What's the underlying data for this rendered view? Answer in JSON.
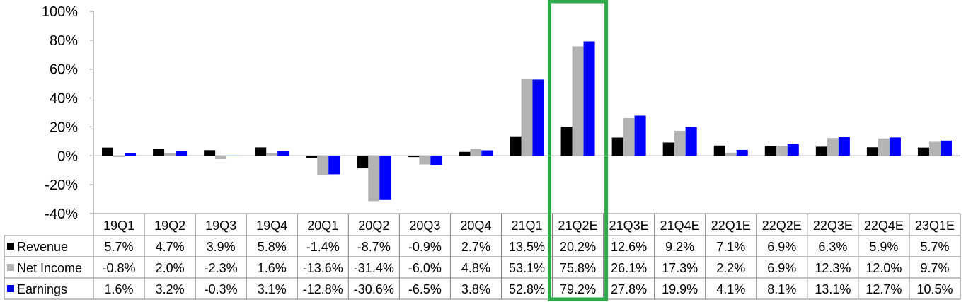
{
  "chart_data": {
    "type": "bar",
    "categories": [
      "19Q1",
      "19Q2",
      "19Q3",
      "19Q4",
      "20Q1",
      "20Q2",
      "20Q3",
      "20Q4",
      "21Q1",
      "21Q2E",
      "21Q3E",
      "21Q4E",
      "22Q1E",
      "22Q2E",
      "22Q3E",
      "22Q4E",
      "23Q1E"
    ],
    "series": [
      {
        "name": "Revenue",
        "color": "#000000",
        "values": [
          5.7,
          4.7,
          3.9,
          5.8,
          -1.4,
          -8.7,
          -0.9,
          2.7,
          13.5,
          20.2,
          12.6,
          9.2,
          7.1,
          6.9,
          6.3,
          5.9,
          5.7
        ],
        "labels": [
          "5.7%",
          "4.7%",
          "3.9%",
          "5.8%",
          "-1.4%",
          "-8.7%",
          "-0.9%",
          "2.7%",
          "13.5%",
          "20.2%",
          "12.6%",
          "9.2%",
          "7.1%",
          "6.9%",
          "6.3%",
          "5.9%",
          "5.7%"
        ]
      },
      {
        "name": "Net Income",
        "color": "#b3b3b3",
        "values": [
          -0.8,
          2.0,
          -2.3,
          1.6,
          -13.6,
          -31.4,
          -6.0,
          4.8,
          53.1,
          75.8,
          26.1,
          17.3,
          2.2,
          6.9,
          12.3,
          12.0,
          9.7
        ],
        "labels": [
          "-0.8%",
          "2.0%",
          "-2.3%",
          "1.6%",
          "-13.6%",
          "-31.4%",
          "-6.0%",
          "4.8%",
          "53.1%",
          "75.8%",
          "26.1%",
          "17.3%",
          "2.2%",
          "6.9%",
          "12.3%",
          "12.0%",
          "9.7%"
        ]
      },
      {
        "name": "Earnings",
        "color": "#0000ff",
        "values": [
          1.6,
          3.2,
          -0.3,
          3.1,
          -12.8,
          -30.6,
          -6.5,
          3.8,
          52.8,
          79.2,
          27.8,
          19.9,
          4.1,
          8.1,
          13.1,
          12.7,
          10.5
        ],
        "labels": [
          "1.6%",
          "3.2%",
          "-0.3%",
          "3.1%",
          "-12.8%",
          "-30.6%",
          "-6.5%",
          "3.8%",
          "52.8%",
          "79.2%",
          "27.8%",
          "19.9%",
          "4.1%",
          "8.1%",
          "13.1%",
          "12.7%",
          "10.5%"
        ]
      }
    ],
    "ylim": [
      -40,
      100
    ],
    "yticks": [
      -40,
      -20,
      0,
      20,
      40,
      60,
      80,
      100
    ],
    "ytick_labels": [
      "-40%",
      "-20%",
      "0%",
      "20%",
      "40%",
      "60%",
      "80%",
      "100%"
    ],
    "highlight": {
      "category": "21Q2E",
      "color": "#2eaa4a"
    },
    "legend": "data-table"
  }
}
